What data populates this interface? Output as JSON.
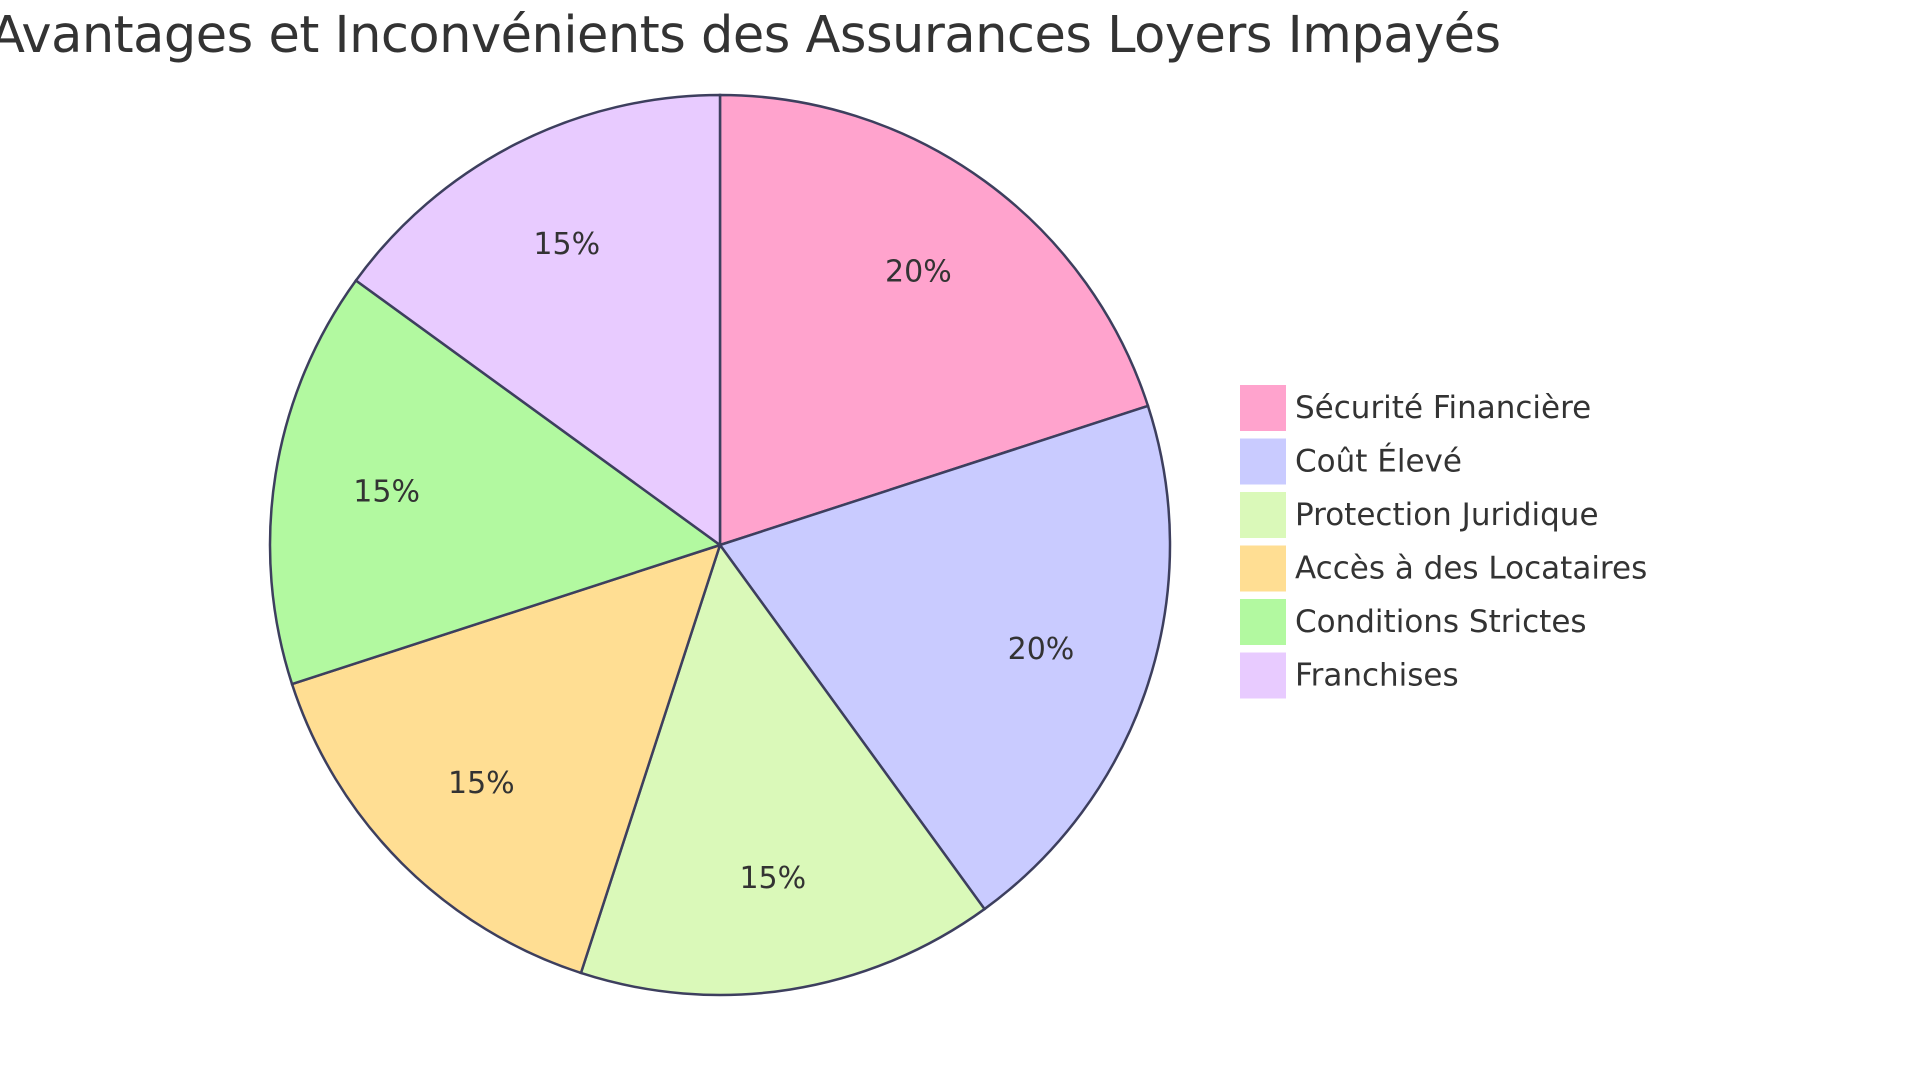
{
  "chart_data": {
    "type": "pie",
    "title": "Avantages et Inconvénients des Assurances Loyers Impayés",
    "legend_position": "right",
    "slices": [
      {
        "label": "Sécurité Financière",
        "value": 20,
        "display": "20%",
        "color": "#FFA3CD"
      },
      {
        "label": "Coût Élevé",
        "value": 20,
        "display": "20%",
        "color": "#C9CBFF"
      },
      {
        "label": "Protection Juridique",
        "value": 15,
        "display": "15%",
        "color": "#DAF9B9"
      },
      {
        "label": "Accès à des Locataires",
        "value": 15,
        "display": "15%",
        "color": "#FFDE93"
      },
      {
        "label": "Conditions Strictes",
        "value": 15,
        "display": "15%",
        "color": "#B2F9A0"
      },
      {
        "label": "Franchises",
        "value": 15,
        "display": "15%",
        "color": "#E8CBFF"
      }
    ],
    "stroke_color": "#3D3F5E"
  }
}
